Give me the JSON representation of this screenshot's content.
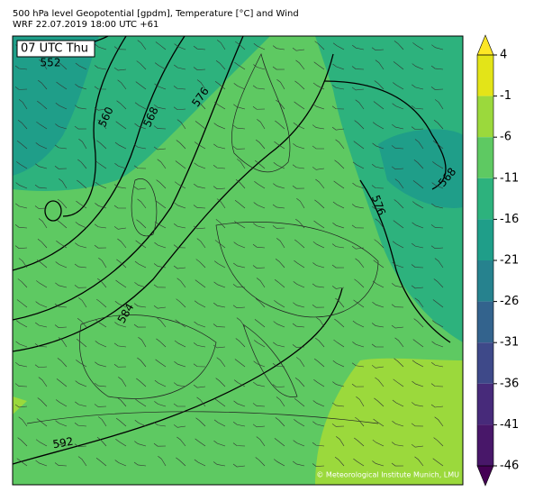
{
  "header": {
    "title": "500 hPa level Geopotential [gpdm], Temperature [°C] and Wind",
    "subtitle": "WRF 22.07.2019 18:00 UTC +61"
  },
  "map": {
    "time_label": "07 UTC Thu",
    "contour_labels": [
      552,
      560,
      568,
      576,
      584,
      592,
      576,
      568
    ],
    "copyright": "© Meteorological Institute Munich, LMU"
  },
  "colorbar": {
    "ticks": [
      4,
      -1,
      -6,
      -11,
      -16,
      -21,
      -26,
      -31,
      -36,
      -41,
      -46
    ],
    "colors": [
      "#e3e418",
      "#9bd93c",
      "#5ec962",
      "#2db27d",
      "#1f9e89",
      "#26828e",
      "#33638d",
      "#3e4989",
      "#472a7a",
      "#481769"
    ],
    "over_color": "#fde725",
    "under_color": "#440154"
  }
}
